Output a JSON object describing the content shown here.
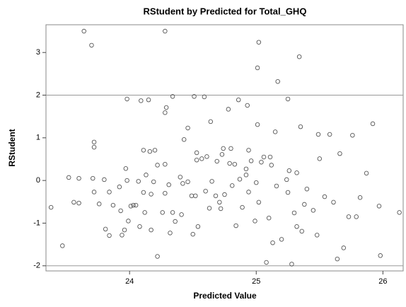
{
  "chart_data": {
    "type": "scatter",
    "title": "RStudent by Predicted for Total_GHQ",
    "x_label": "Predicted Value",
    "y_label": "RStudent",
    "xlim": [
      23.34,
      26.16
    ],
    "ylim": [
      -2.12,
      3.65
    ],
    "xticks": [
      24,
      25,
      26
    ],
    "yticks": [
      -2,
      -1,
      0,
      1,
      2,
      3
    ],
    "reference_lines": [
      2,
      -2
    ],
    "color": "#555555",
    "x": [
      23.38,
      23.47,
      23.52,
      23.56,
      23.6,
      23.6,
      23.64,
      23.7,
      23.71,
      23.72,
      23.72,
      23.72,
      23.76,
      23.8,
      23.81,
      23.84,
      23.84,
      23.87,
      23.92,
      23.93,
      23.94,
      23.96,
      23.97,
      23.98,
      23.98,
      23.99,
      24.01,
      24.03,
      24.05,
      24.07,
      24.08,
      24.09,
      24.11,
      24.11,
      24.12,
      24.13,
      24.15,
      24.16,
      24.17,
      24.17,
      24.19,
      24.2,
      24.22,
      24.22,
      24.26,
      24.28,
      24.28,
      24.28,
      24.29,
      24.28,
      24.31,
      24.32,
      24.34,
      24.34,
      24.36,
      24.4,
      24.41,
      24.42,
      24.43,
      24.46,
      24.46,
      24.49,
      24.5,
      24.51,
      24.52,
      24.53,
      24.53,
      24.54,
      24.57,
      24.59,
      24.6,
      24.61,
      24.63,
      24.64,
      24.65,
      24.68,
      24.69,
      24.71,
      24.72,
      24.73,
      24.74,
      24.75,
      24.78,
      24.79,
      24.8,
      24.81,
      24.83,
      24.84,
      24.86,
      24.87,
      24.89,
      24.92,
      24.92,
      24.93,
      24.94,
      24.94,
      24.96,
      24.99,
      25.0,
      25.01,
      25.02,
      25.01,
      25.02,
      25.04,
      25.06,
      25.08,
      25.1,
      25.11,
      25.12,
      25.13,
      25.15,
      25.16,
      25.17,
      25.2,
      25.24,
      25.25,
      25.25,
      25.26,
      25.28,
      25.3,
      25.32,
      25.32,
      25.34,
      25.35,
      25.36,
      25.38,
      25.4,
      25.45,
      25.48,
      25.49,
      25.5,
      25.54,
      25.58,
      25.61,
      25.64,
      25.66,
      25.69,
      25.73,
      25.76,
      25.79,
      25.82,
      25.87,
      25.92,
      25.97,
      25.98,
      26.13
    ],
    "values": [
      -0.63,
      -1.53,
      0.07,
      -0.51,
      0.05,
      -0.53,
      3.5,
      3.17,
      0.05,
      0.9,
      0.78,
      -0.27,
      -0.55,
      0.02,
      -1.14,
      -0.27,
      -1.29,
      -0.58,
      -0.15,
      -0.71,
      -1.28,
      -1.16,
      0.28,
      1.91,
      0,
      -0.95,
      -0.6,
      -0.58,
      -0.58,
      -0.02,
      -1.08,
      1.87,
      0.71,
      -0.28,
      -0.75,
      0.13,
      1.89,
      0.68,
      -0.32,
      -1.16,
      -0.03,
      0.71,
      0.36,
      -1.78,
      -0.75,
      -0.3,
      0.38,
      1.59,
      1.71,
      3.5,
      -0.1,
      -1.23,
      1.97,
      -0.75,
      -0.96,
      0.08,
      -0.8,
      -0.07,
      0.96,
      -0.03,
      1.23,
      -0.36,
      -1.26,
      1.97,
      -0.36,
      0.65,
      0.48,
      -1.08,
      0.51,
      1.96,
      -0.25,
      0.56,
      -0.65,
      1.38,
      -0.02,
      -0.36,
      0.45,
      -0.51,
      -0.66,
      0.61,
      0.75,
      -0.33,
      1.67,
      0.4,
      0.75,
      -0.12,
      0.38,
      -1.06,
      1.89,
      0.03,
      -0.63,
      0.27,
      0.13,
      1.76,
      -0.27,
      0.71,
      0.46,
      -0.95,
      -0.05,
      2.64,
      3.24,
      1.31,
      -0.51,
      0.43,
      0.55,
      -1.92,
      -0.88,
      0.55,
      0.36,
      -1.46,
      1.14,
      -0.13,
      2.32,
      -1.38,
      0.02,
      -0.28,
      1.91,
      0.23,
      -1.96,
      -0.76,
      0.18,
      -1.08,
      2.9,
      1.26,
      -1.19,
      -0.56,
      -0.2,
      -0.7,
      -1.28,
      1.08,
      0.51,
      -0.38,
      1.08,
      -0.51,
      -1.84,
      0.63,
      -1.58,
      -0.85,
      1.06,
      -0.85,
      -0.4,
      0.17,
      1.33,
      -0.6,
      -1.76,
      -0.75
    ]
  }
}
